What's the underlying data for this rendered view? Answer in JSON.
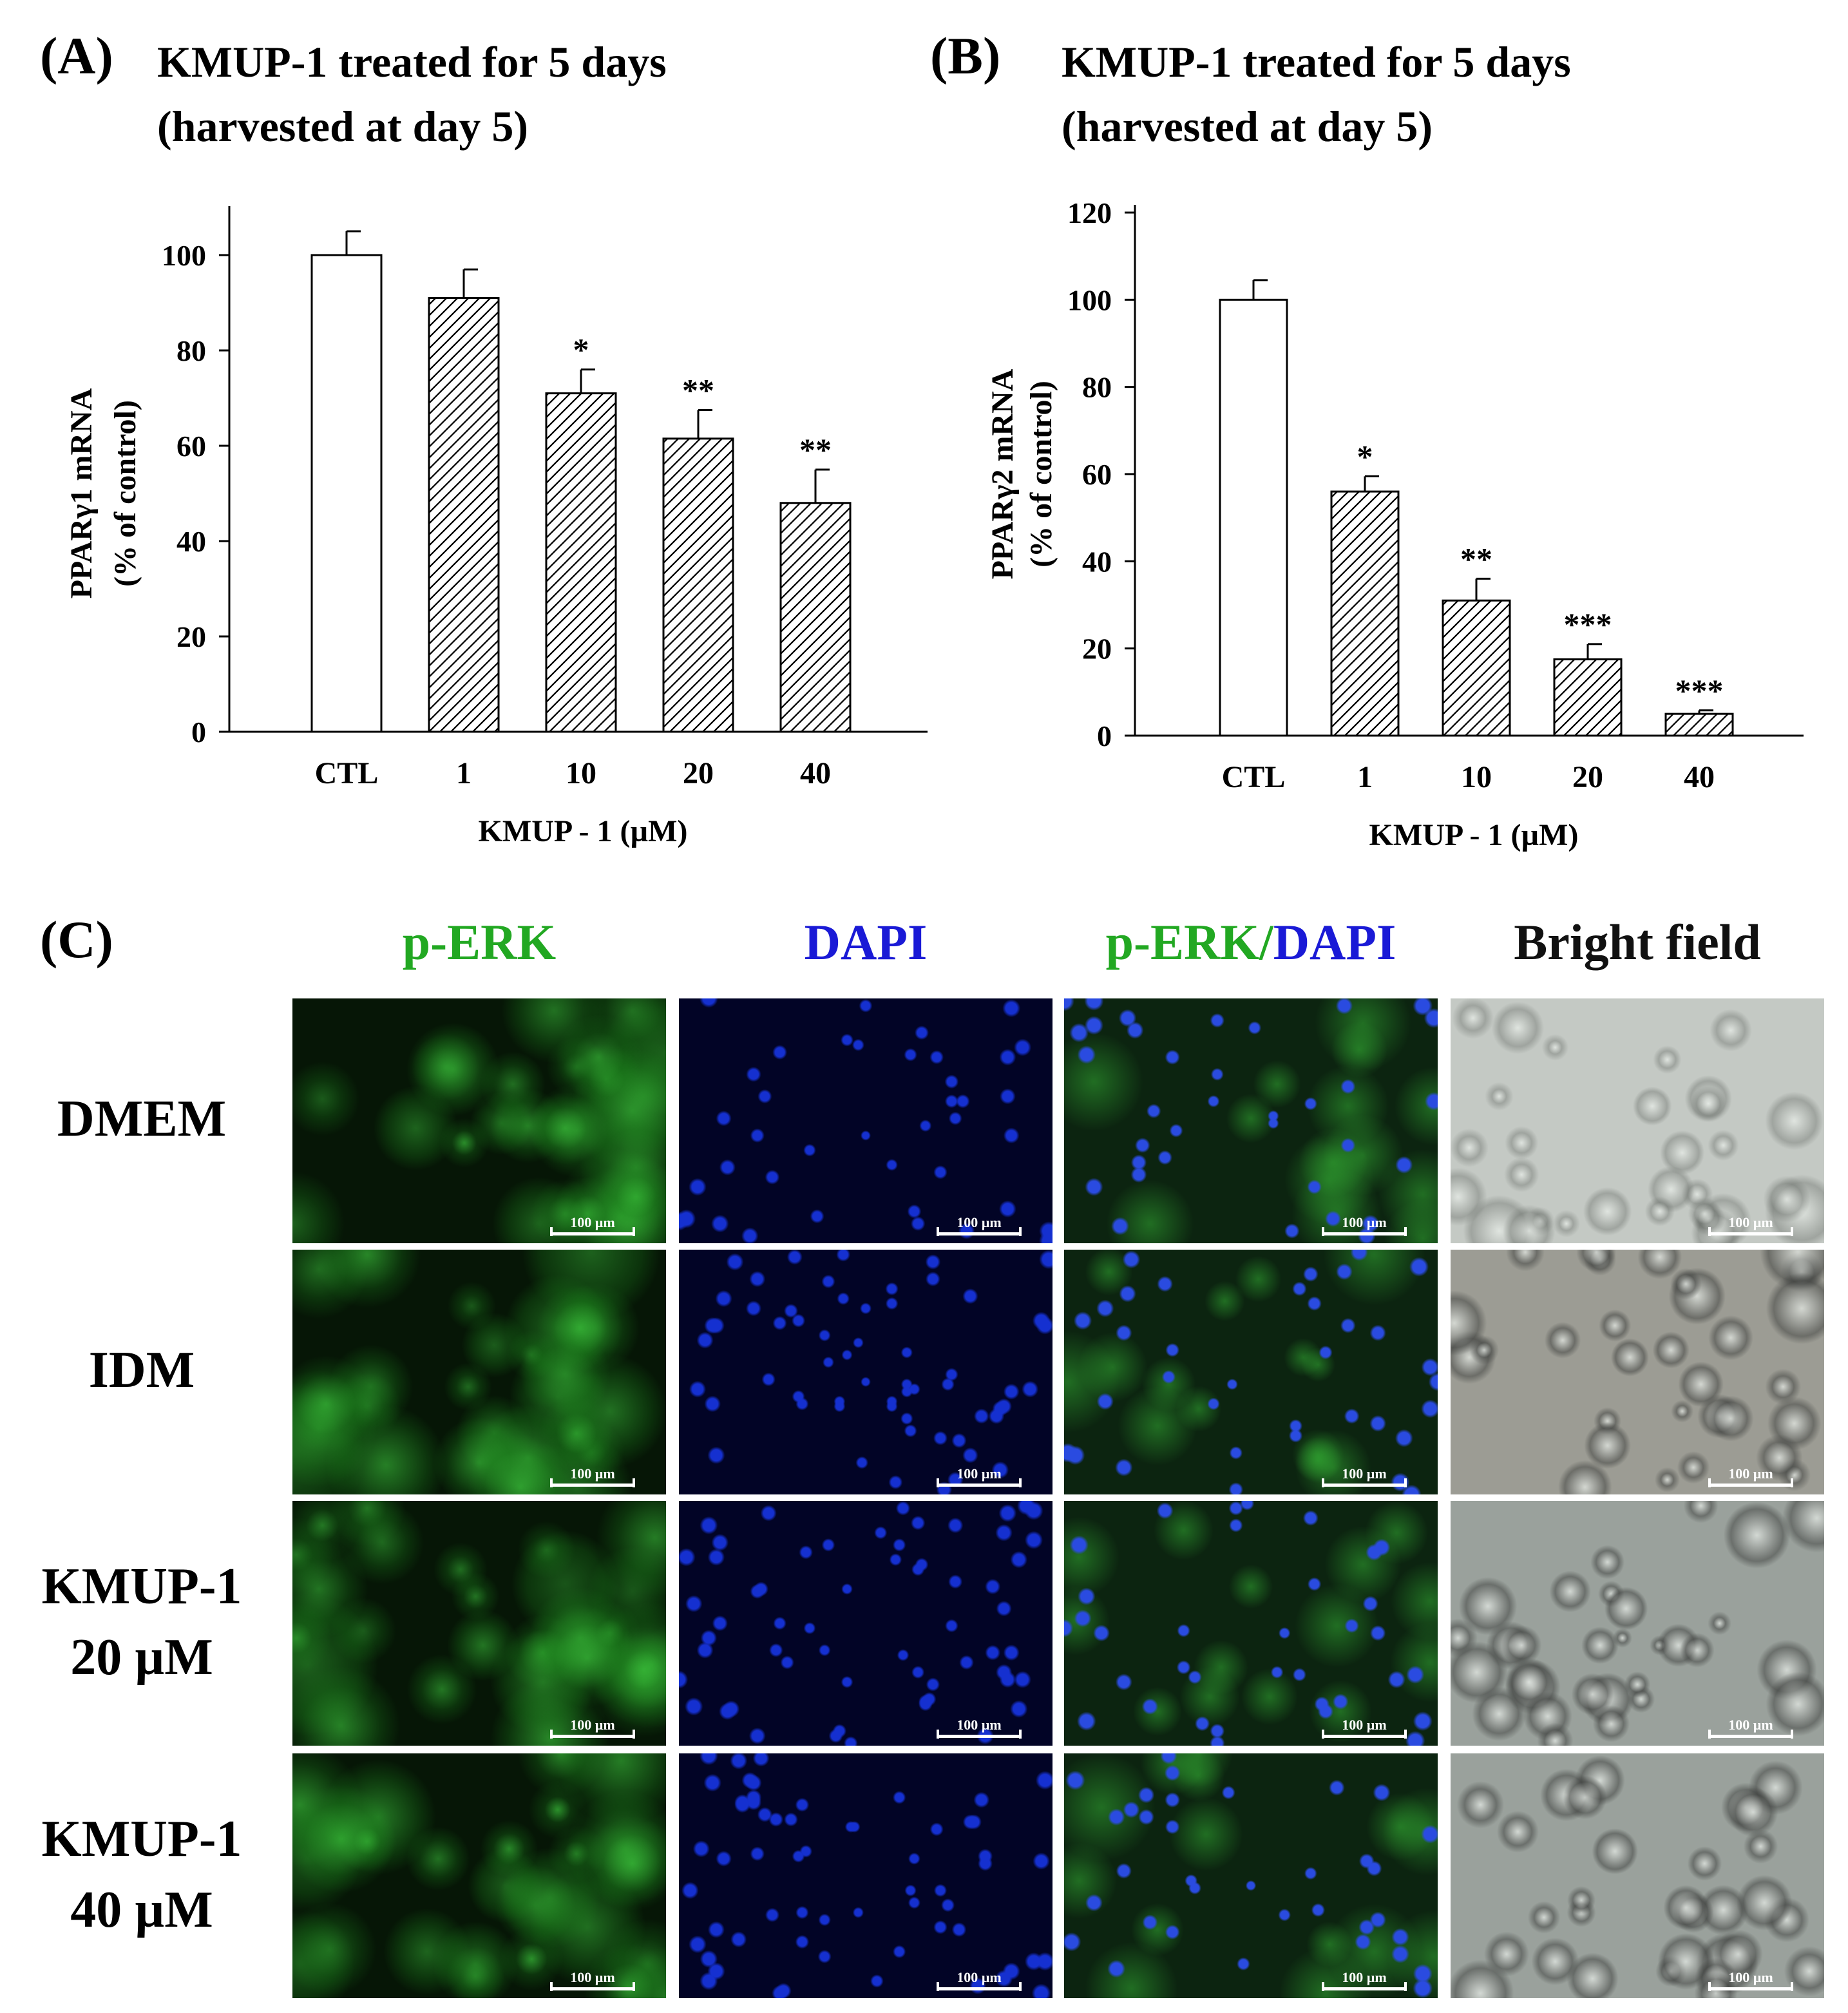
{
  "panels": {
    "A": {
      "label": "(A)",
      "title_line1": "KMUP-1 treated for 5 days",
      "title_line2": "(harvested at day 5)"
    },
    "B": {
      "label": "(B)",
      "title_line1": "KMUP-1 treated for 5 days",
      "title_line2": "(harvested at day 5)"
    },
    "C": {
      "label": "(C)"
    }
  },
  "chart_data": [
    {
      "type": "bar",
      "categories": [
        "CTL",
        "1",
        "10",
        "20",
        "40"
      ],
      "values": [
        100,
        91,
        71,
        61.5,
        48
      ],
      "errors": [
        5,
        6,
        5,
        6,
        7
      ],
      "significance": [
        "",
        "",
        "*",
        "**",
        "**"
      ],
      "fills": [
        "open",
        "hatched",
        "hatched",
        "hatched",
        "hatched"
      ],
      "xlabel": "KMUP - 1  (µM)",
      "ylabel_line1": "PPARγ1 mRNA",
      "ylabel_line2": "(% of control)",
      "ylim": [
        0,
        100
      ],
      "yticks": [
        0,
        20,
        40,
        60,
        80,
        100
      ],
      "grid": false
    },
    {
      "type": "bar",
      "categories": [
        "CTL",
        "1",
        "10",
        "20",
        "40"
      ],
      "values": [
        100,
        56,
        31,
        17.5,
        5
      ],
      "errors": [
        4.5,
        3.5,
        5,
        3.5,
        0.8
      ],
      "significance": [
        "",
        "*",
        "**",
        "***",
        "***"
      ],
      "fills": [
        "open",
        "hatched",
        "hatched",
        "hatched",
        "hatched"
      ],
      "xlabel": "KMUP - 1  (µM)",
      "ylabel_line1": "PPARγ2 mRNA",
      "ylabel_line2": "(% of control)",
      "ylim": [
        0,
        120
      ],
      "yticks": [
        0,
        20,
        40,
        60,
        80,
        100,
        120
      ],
      "grid": false
    }
  ],
  "microscopy": {
    "columns": [
      {
        "parts": [
          {
            "text": "p-ERK",
            "color": "#22a822"
          }
        ]
      },
      {
        "parts": [
          {
            "text": "DAPI",
            "color": "#1a1ad6"
          }
        ]
      },
      {
        "parts": [
          {
            "text": "p-ERK/",
            "color": "#22a822"
          },
          {
            "text": "DAPI",
            "color": "#1a1ad6"
          }
        ]
      },
      {
        "parts": [
          {
            "text": "Bright field",
            "color": "#111111"
          }
        ]
      }
    ],
    "rows": [
      {
        "line1": "DMEM",
        "line2": ""
      },
      {
        "line1": "IDM",
        "line2": ""
      },
      {
        "line1": "KMUP-1",
        "line2": "20 µM"
      },
      {
        "line1": "KMUP-1",
        "line2": "40 µM"
      }
    ],
    "scale_bar": "100 µm",
    "image_colors": {
      "green": "#1c8a1c",
      "blue": "#1530d0",
      "merge_bg": "#0c2410",
      "bright": "#aab0aa"
    }
  }
}
